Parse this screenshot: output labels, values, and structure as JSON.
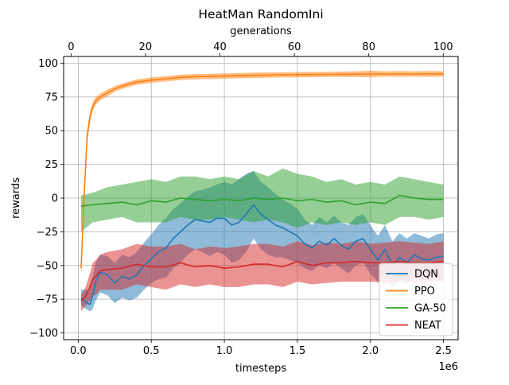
{
  "chart_data": {
    "type": "line",
    "title": "HeatMan RandomIni",
    "xlabel": "timesteps",
    "x_multiplier_label": "1e6",
    "x2label": "generations",
    "ylabel": "rewards",
    "xlim": [
      -0.1,
      2.6
    ],
    "x2lim": [
      -2,
      104
    ],
    "ylim": [
      -105,
      105
    ],
    "xticks": [
      "0.0",
      "0.5",
      "1.0",
      "1.5",
      "2.0",
      "2.5"
    ],
    "xtick_values": [
      0.0,
      0.5,
      1.0,
      1.5,
      2.0,
      2.5
    ],
    "x2ticks": [
      "0",
      "20",
      "40",
      "60",
      "80",
      "100"
    ],
    "x2tick_values": [
      0,
      20,
      40,
      60,
      80,
      100
    ],
    "yticks": [
      "100",
      "75",
      "50",
      "25",
      "0",
      "−25",
      "−50",
      "−75",
      "−100"
    ],
    "ytick_values": [
      100,
      75,
      50,
      25,
      0,
      -25,
      -50,
      -75,
      -100
    ],
    "grid": true,
    "legend_position": "bottom-right",
    "series": [
      {
        "name": "DQN",
        "color": "#1f77b4",
        "x": [
          0.02,
          0.05,
          0.08,
          0.1,
          0.12,
          0.15,
          0.2,
          0.25,
          0.3,
          0.35,
          0.4,
          0.45,
          0.5,
          0.55,
          0.6,
          0.65,
          0.7,
          0.75,
          0.8,
          0.85,
          0.9,
          0.95,
          1.0,
          1.05,
          1.1,
          1.15,
          1.2,
          1.25,
          1.3,
          1.35,
          1.4,
          1.45,
          1.5,
          1.55,
          1.6,
          1.65,
          1.7,
          1.75,
          1.8,
          1.85,
          1.9,
          1.95,
          2.0,
          2.05,
          2.1,
          2.15,
          2.2,
          2.25,
          2.3,
          2.35,
          2.4,
          2.45,
          2.5
        ],
        "y": [
          -74,
          -77,
          -79,
          -72,
          -62,
          -55,
          -57,
          -63,
          -58,
          -60,
          -57,
          -50,
          -45,
          -40,
          -37,
          -30,
          -25,
          -20,
          -16,
          -17,
          -18,
          -15,
          -15,
          -20,
          -18,
          -12,
          -5,
          -12,
          -16,
          -20,
          -22,
          -25,
          -28,
          -34,
          -37,
          -32,
          -35,
          -30,
          -35,
          -38,
          -32,
          -30,
          -38,
          -46,
          -38,
          -50,
          -44,
          -48,
          -42,
          -45,
          -46,
          -44,
          -43
        ],
        "upper": [
          -68,
          -68,
          -68,
          -58,
          -48,
          -42,
          -43,
          -48,
          -42,
          -44,
          -40,
          -33,
          -27,
          -20,
          -15,
          -8,
          -4,
          1,
          5,
          6,
          8,
          10,
          12,
          10,
          14,
          18,
          20,
          12,
          8,
          3,
          -1,
          -4,
          -8,
          -16,
          -20,
          -14,
          -18,
          -13,
          -18,
          -20,
          -14,
          -12,
          -20,
          -28,
          -20,
          -32,
          -26,
          -30,
          -26,
          -28,
          -30,
          -27,
          -26
        ],
        "lower": [
          -79,
          -82,
          -84,
          -82,
          -76,
          -70,
          -72,
          -78,
          -74,
          -76,
          -74,
          -68,
          -63,
          -60,
          -59,
          -52,
          -48,
          -42,
          -38,
          -40,
          -43,
          -40,
          -42,
          -48,
          -46,
          -40,
          -30,
          -38,
          -42,
          -44,
          -44,
          -46,
          -48,
          -52,
          -54,
          -50,
          -52,
          -48,
          -52,
          -56,
          -50,
          -48,
          -56,
          -62,
          -56,
          -66,
          -60,
          -64,
          -58,
          -60,
          -61,
          -60,
          -59
        ]
      },
      {
        "name": "PPO",
        "color": "#ff7f0e",
        "x": [
          0.02,
          0.04,
          0.06,
          0.08,
          0.1,
          0.12,
          0.15,
          0.2,
          0.25,
          0.3,
          0.4,
          0.5,
          0.6,
          0.7,
          0.8,
          0.9,
          1.0,
          1.1,
          1.2,
          1.3,
          1.4,
          1.5,
          1.6,
          1.7,
          1.8,
          1.9,
          2.0,
          2.1,
          2.2,
          2.3,
          2.4,
          2.5
        ],
        "y": [
          -52,
          0,
          45,
          60,
          68,
          72,
          75,
          78,
          81,
          83,
          86,
          87.5,
          88.5,
          89.5,
          90,
          90.2,
          90.5,
          90.8,
          91,
          91.2,
          91.4,
          91.5,
          91.6,
          91.7,
          91.8,
          91.9,
          92,
          92,
          92,
          92,
          92.1,
          92
        ],
        "upper": [
          -46,
          8,
          50,
          64,
          71,
          75,
          77.5,
          80.5,
          83,
          85,
          88,
          89.5,
          90.5,
          91.5,
          92,
          92.2,
          92.5,
          92.8,
          93,
          93.2,
          93.4,
          93.5,
          93.6,
          93.7,
          93.8,
          94,
          94.5,
          94,
          94.2,
          94,
          94.3,
          94
        ],
        "lower": [
          -58,
          -8,
          40,
          56,
          65,
          69,
          72.5,
          75.5,
          79,
          81,
          84,
          85.5,
          86.5,
          87.5,
          88,
          88.2,
          88.5,
          88.8,
          89,
          89.2,
          89.4,
          89.5,
          89.6,
          89.7,
          89.8,
          89.8,
          89.5,
          90,
          89.8,
          90,
          89.9,
          90
        ]
      },
      {
        "name": "GA-50",
        "color": "#2ca02c",
        "x": [
          0.02,
          0.1,
          0.2,
          0.3,
          0.4,
          0.5,
          0.6,
          0.7,
          0.8,
          0.9,
          1.0,
          1.1,
          1.2,
          1.3,
          1.4,
          1.5,
          1.6,
          1.7,
          1.8,
          1.9,
          2.0,
          2.1,
          2.2,
          2.3,
          2.4,
          2.5
        ],
        "y": [
          -6,
          -5,
          -4,
          -3,
          -5,
          -2,
          -3,
          0,
          -1,
          -2,
          -1,
          -2,
          0,
          -1,
          0,
          -2,
          -1,
          -3,
          -2,
          -5,
          -3,
          -4,
          2,
          0,
          -1,
          -1
        ],
        "upper": [
          2,
          4,
          8,
          10,
          12,
          14,
          12,
          16,
          16,
          14,
          16,
          14,
          20,
          16,
          22,
          18,
          16,
          12,
          14,
          10,
          12,
          10,
          16,
          14,
          12,
          10
        ],
        "lower": [
          -25,
          -18,
          -16,
          -14,
          -18,
          -18,
          -18,
          -14,
          -16,
          -16,
          -14,
          -16,
          -18,
          -16,
          -18,
          -22,
          -18,
          -20,
          -18,
          -20,
          -18,
          -20,
          -14,
          -14,
          -16,
          -14
        ]
      },
      {
        "name": "NEAT",
        "color": "#d62728",
        "x": [
          0.02,
          0.05,
          0.08,
          0.1,
          0.12,
          0.15,
          0.2,
          0.3,
          0.4,
          0.5,
          0.6,
          0.7,
          0.8,
          0.9,
          1.0,
          1.1,
          1.2,
          1.3,
          1.4,
          1.5,
          1.6,
          1.7,
          1.8,
          1.9,
          2.0,
          2.1,
          2.2,
          2.3,
          2.4,
          2.5
        ],
        "y": [
          -76,
          -73,
          -66,
          -60,
          -58,
          -54,
          -53,
          -52,
          -49,
          -51,
          -51,
          -48,
          -51,
          -50,
          -52,
          -51,
          -49,
          -49,
          -51,
          -47,
          -50,
          -48,
          -48,
          -47,
          -48,
          -48,
          -47,
          -48,
          -48,
          -47
        ],
        "upper": [
          -72,
          -66,
          -56,
          -48,
          -46,
          -42,
          -40,
          -38,
          -34,
          -36,
          -36,
          -34,
          -38,
          -36,
          -37,
          -36,
          -34,
          -34,
          -36,
          -32,
          -35,
          -33,
          -34,
          -32,
          -34,
          -33,
          -32,
          -33,
          -34,
          -32
        ],
        "lower": [
          -84,
          -80,
          -76,
          -72,
          -72,
          -68,
          -68,
          -68,
          -64,
          -66,
          -68,
          -64,
          -66,
          -64,
          -66,
          -66,
          -64,
          -64,
          -66,
          -62,
          -64,
          -63,
          -62,
          -62,
          -62,
          -63,
          -62,
          -62,
          -62,
          -62
        ]
      }
    ]
  }
}
